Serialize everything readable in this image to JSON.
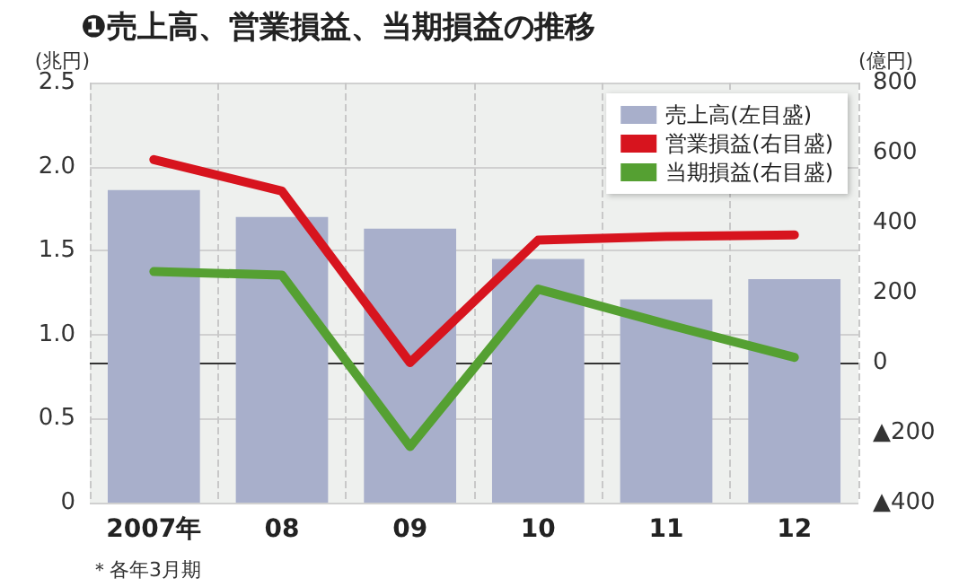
{
  "chart_data": {
    "type": "bar",
    "title": "❶売上高、営業損益、当期損益の推移",
    "categories": [
      "2007年",
      "08",
      "09",
      "10",
      "11",
      "12"
    ],
    "series": [
      {
        "name": "売上高(左目盛)",
        "color": "#a8afcb",
        "values": [
          1.86,
          1.7,
          1.63,
          1.45,
          1.21,
          1.33
        ]
      },
      {
        "name": "営業損益(右目盛)",
        "type": "line",
        "axis": "y2",
        "color": "#d7141e",
        "values": [
          580,
          490,
          0,
          350,
          360,
          365
        ]
      },
      {
        "name": "当期損益(右目盛)",
        "type": "line",
        "axis": "y2",
        "color": "#55a032",
        "values": [
          260,
          250,
          -240,
          210,
          110,
          15
        ]
      }
    ],
    "ylabel": "(兆円)",
    "y2label": "(億円)",
    "ylim": [
      0,
      2.5
    ],
    "yticks": [
      0,
      0.5,
      {
        "value": 1,
        "label": "1.0"
      },
      1.5,
      {
        "value": 2,
        "label": "2.0"
      },
      2.5
    ],
    "y2lim": [
      -400,
      800
    ],
    "y2ticks": [
      {
        "value": -400,
        "label": "▲400"
      },
      {
        "value": -200,
        "label": "▲200"
      },
      0,
      200,
      400,
      600,
      800
    ],
    "ref_lines": [
      {
        "axis": "y2",
        "value": 0,
        "color": "#333333"
      }
    ],
    "annotations": [
      "＊各年3月期"
    ],
    "grid": true,
    "legend": "top right",
    "marker": "none",
    "line_style": "solid"
  }
}
